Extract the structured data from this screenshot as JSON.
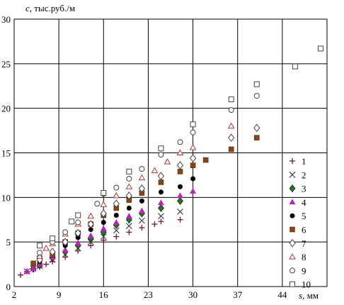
{
  "chart_data": {
    "type": "scatter",
    "xlabel_var": "s",
    "xlabel_unit": ", мм",
    "ylabel_var": "c",
    "ylabel_unit": ", тыс.руб./м",
    "xlim": [
      2,
      51
    ],
    "ylim": [
      0,
      30
    ],
    "x_ticks": [
      2,
      9,
      16,
      23,
      30,
      37,
      44
    ],
    "y_ticks": [
      0,
      5,
      10,
      15,
      20,
      25,
      30
    ],
    "grid": true,
    "legend_position": "right",
    "series": [
      {
        "name": "1",
        "marker": "plus",
        "color": "#7a1040",
        "x": [
          3,
          4,
          5,
          6,
          7,
          8,
          10,
          12,
          14,
          16,
          18,
          20,
          22,
          24,
          25,
          28
        ],
        "y": [
          1.3,
          1.7,
          1.9,
          2.2,
          2.5,
          2.8,
          3.3,
          4.0,
          4.6,
          5.2,
          5.6,
          6.1,
          6.6,
          7.0,
          7.3,
          7.5
        ]
      },
      {
        "name": "2",
        "marker": "cross",
        "color": "#444444",
        "x": [
          4,
          5,
          6,
          8,
          10,
          12,
          14,
          16,
          18,
          20,
          22,
          25,
          28
        ],
        "y": [
          1.7,
          2.0,
          2.3,
          3.0,
          3.6,
          4.3,
          5.0,
          5.6,
          6.3,
          6.8,
          7.4,
          7.9,
          8.4
        ]
      },
      {
        "name": "3",
        "marker": "diamond",
        "color": "#1f7a1f",
        "x": [
          5,
          6,
          8,
          10,
          12,
          14,
          16,
          18,
          20,
          22,
          25,
          28
        ],
        "y": [
          2.0,
          2.4,
          3.2,
          3.9,
          4.6,
          5.4,
          6.1,
          6.9,
          7.5,
          8.2,
          8.8,
          9.6
        ]
      },
      {
        "name": "4",
        "marker": "triangle",
        "color": "#c020c0",
        "x": [
          4,
          5,
          6,
          8,
          10,
          12,
          14,
          16,
          18,
          20,
          22,
          25,
          28,
          30
        ],
        "y": [
          1.7,
          2.0,
          2.5,
          3.3,
          4.1,
          4.9,
          5.7,
          6.5,
          7.2,
          7.9,
          8.5,
          9.4,
          10.2,
          10.7
        ]
      },
      {
        "name": "5",
        "marker": "circle-filled",
        "color": "#000000",
        "x": [
          6,
          8,
          10,
          12,
          14,
          16,
          18,
          20,
          22,
          25,
          28,
          30
        ],
        "y": [
          2.8,
          3.6,
          4.6,
          5.5,
          6.4,
          7.2,
          8.0,
          8.8,
          9.6,
          10.6,
          11.2,
          12.1
        ]
      },
      {
        "name": "6",
        "marker": "square-filled",
        "color": "#8b4513",
        "x": [
          5,
          6,
          8,
          10,
          12,
          14,
          16,
          18,
          20,
          22,
          25,
          28,
          30,
          32,
          36,
          40
        ],
        "y": [
          2.6,
          3.2,
          3.6,
          5.0,
          6.0,
          7.0,
          8.0,
          8.8,
          9.7,
          10.5,
          11.7,
          12.9,
          13.6,
          14.2,
          15.4,
          16.7
        ]
      },
      {
        "name": "7",
        "marker": "diamond-open",
        "color": "#444444",
        "x": [
          6,
          8,
          10,
          12,
          14,
          16,
          18,
          20,
          22,
          25,
          28,
          30,
          36,
          40
        ],
        "y": [
          3.0,
          3.9,
          5.0,
          6.0,
          7.0,
          8.2,
          9.3,
          10.2,
          11.0,
          12.4,
          13.6,
          14.4,
          16.7,
          17.8
        ]
      },
      {
        "name": "8",
        "marker": "triangle-open",
        "color": "#b03a3a",
        "x": [
          6,
          7,
          8,
          10,
          12,
          14,
          16,
          18,
          20,
          22,
          24,
          26,
          28,
          30,
          36
        ],
        "y": [
          3.4,
          4.3,
          4.8,
          5.9,
          7.0,
          7.9,
          9.2,
          10.2,
          11.2,
          12.2,
          13.0,
          14.0,
          15.0,
          15.6,
          18.0
        ]
      },
      {
        "name": "9",
        "marker": "circle-open",
        "color": "#444444",
        "x": [
          6,
          8,
          10,
          12,
          15,
          16,
          18,
          20,
          22,
          25,
          28,
          30,
          36,
          40
        ],
        "y": [
          3.8,
          5.0,
          6.1,
          7.2,
          9.3,
          10.4,
          11.1,
          12.1,
          13.2,
          14.8,
          16.2,
          17.3,
          19.8,
          21.4
        ]
      },
      {
        "name": "10",
        "marker": "square-open",
        "color": "#444444",
        "x": [
          6,
          8,
          11,
          12,
          16,
          20,
          25,
          30,
          36,
          40,
          46,
          50
        ],
        "y": [
          4.6,
          5.4,
          7.3,
          8.0,
          10.5,
          12.9,
          15.5,
          18.2,
          21.0,
          22.7,
          24.7,
          26.7
        ]
      }
    ]
  }
}
